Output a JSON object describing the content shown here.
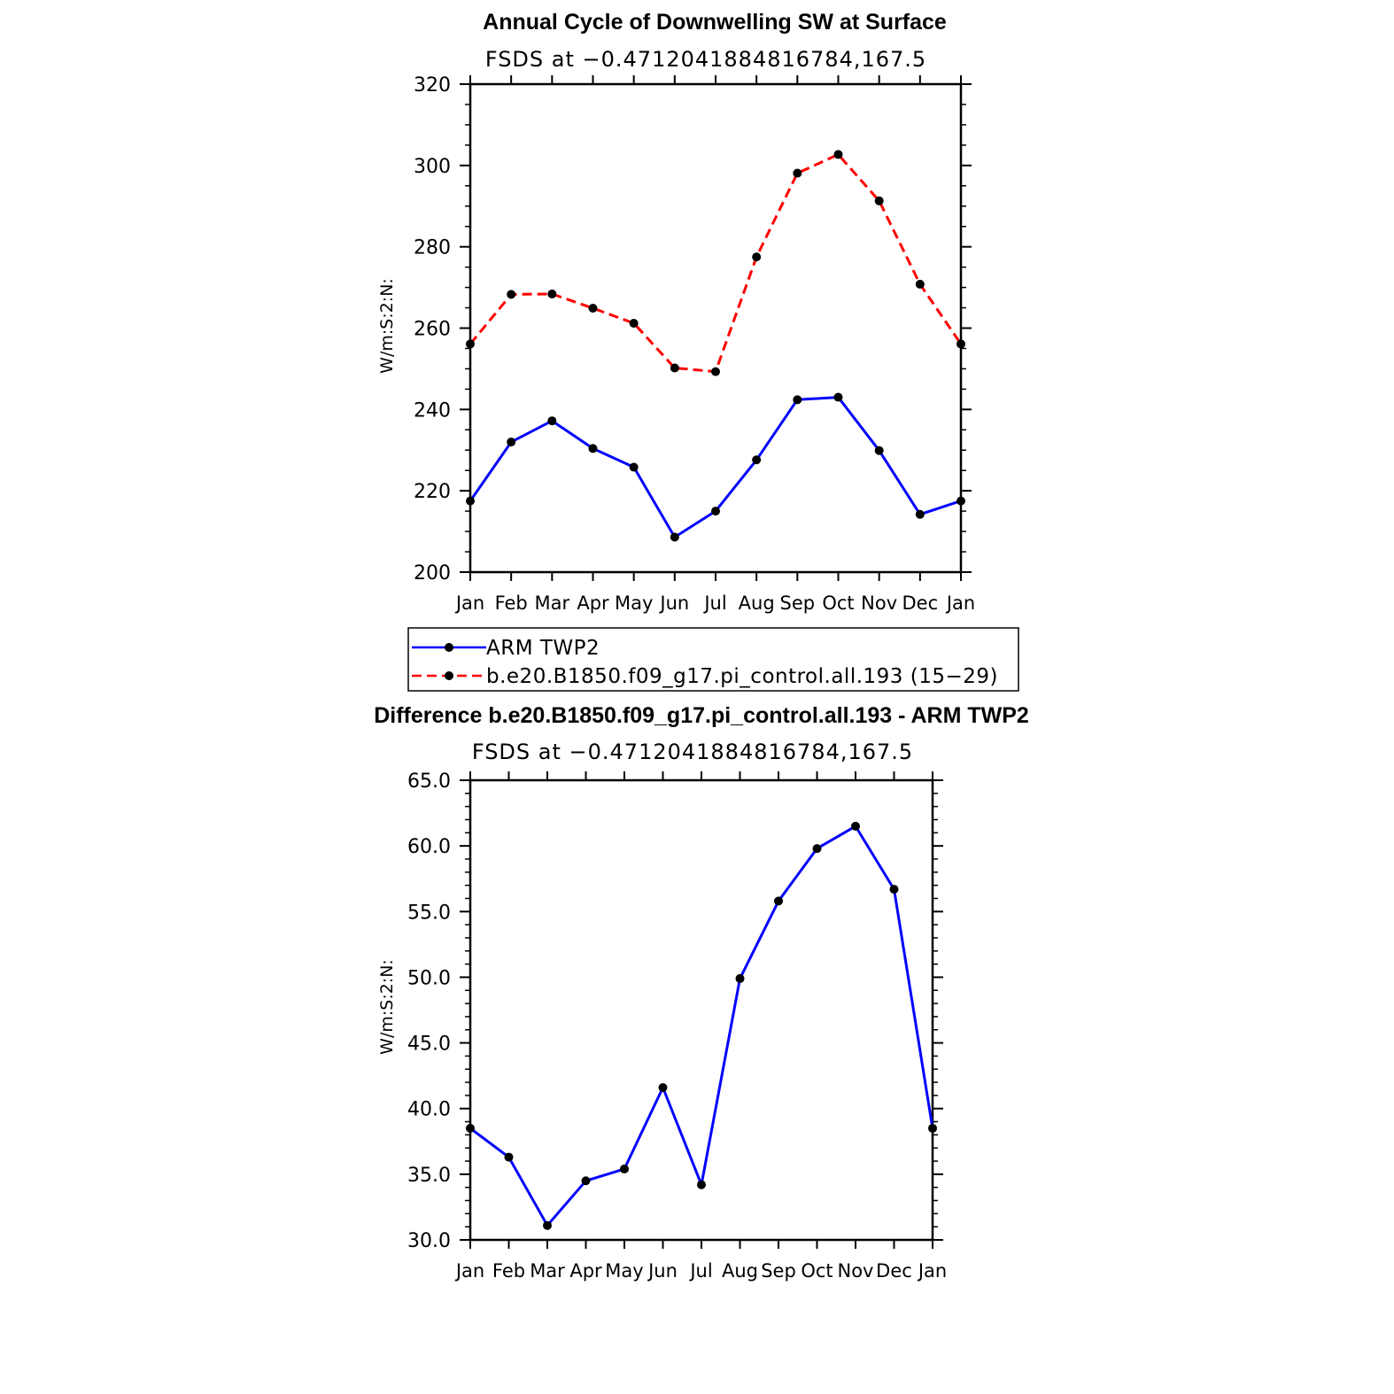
{
  "chart_data": [
    {
      "type": "line",
      "title": "Annual Cycle of Downwelling SW at Surface",
      "subtitle": "FSDS at −0.4712041884816784,167.5",
      "xlabel": "",
      "ylabel": "W/m:S:2:N:",
      "categories": [
        "Jan",
        "Feb",
        "Mar",
        "Apr",
        "May",
        "Jun",
        "Jul",
        "Aug",
        "Sep",
        "Oct",
        "Nov",
        "Dec",
        "Jan"
      ],
      "ylim": [
        200,
        320
      ],
      "yticks": [
        "200",
        "220",
        "240",
        "260",
        "280",
        "300",
        "320"
      ],
      "series": [
        {
          "name": "ARM TWP2",
          "color": "#0000ff",
          "dash": "solid",
          "values": [
            217.5,
            232.0,
            237.2,
            230.4,
            225.8,
            208.6,
            215.0,
            227.6,
            242.4,
            243.0,
            229.9,
            214.2,
            217.5
          ]
        },
        {
          "name": "b.e20.B1850.f09_g17.pi_control.all.193 (15−29)",
          "color": "#ff0000",
          "dash": "dashed",
          "values": [
            256.1,
            268.3,
            268.4,
            264.9,
            261.2,
            250.2,
            249.3,
            277.5,
            298.1,
            302.7,
            291.3,
            270.8,
            256.1
          ]
        }
      ],
      "legend": "below"
    },
    {
      "type": "line",
      "title": "Difference b.e20.B1850.f09_g17.pi_control.all.193 - ARM TWP2",
      "subtitle": "FSDS at −0.4712041884816784,167.5",
      "xlabel": "",
      "ylabel": "W/m:S:2:N:",
      "categories": [
        "Jan",
        "Feb",
        "Mar",
        "Apr",
        "May",
        "Jun",
        "Jul",
        "Aug",
        "Sep",
        "Oct",
        "Nov",
        "Dec",
        "Jan"
      ],
      "ylim": [
        30,
        65
      ],
      "yticks": [
        "30.0",
        "35.0",
        "40.0",
        "45.0",
        "50.0",
        "55.0",
        "60.0",
        "65.0"
      ],
      "series": [
        {
          "color": "#0000ff",
          "dash": "solid",
          "values": [
            38.5,
            36.3,
            31.1,
            34.5,
            35.4,
            41.6,
            34.2,
            49.9,
            55.8,
            59.8,
            61.5,
            56.7,
            38.5
          ]
        }
      ]
    }
  ]
}
